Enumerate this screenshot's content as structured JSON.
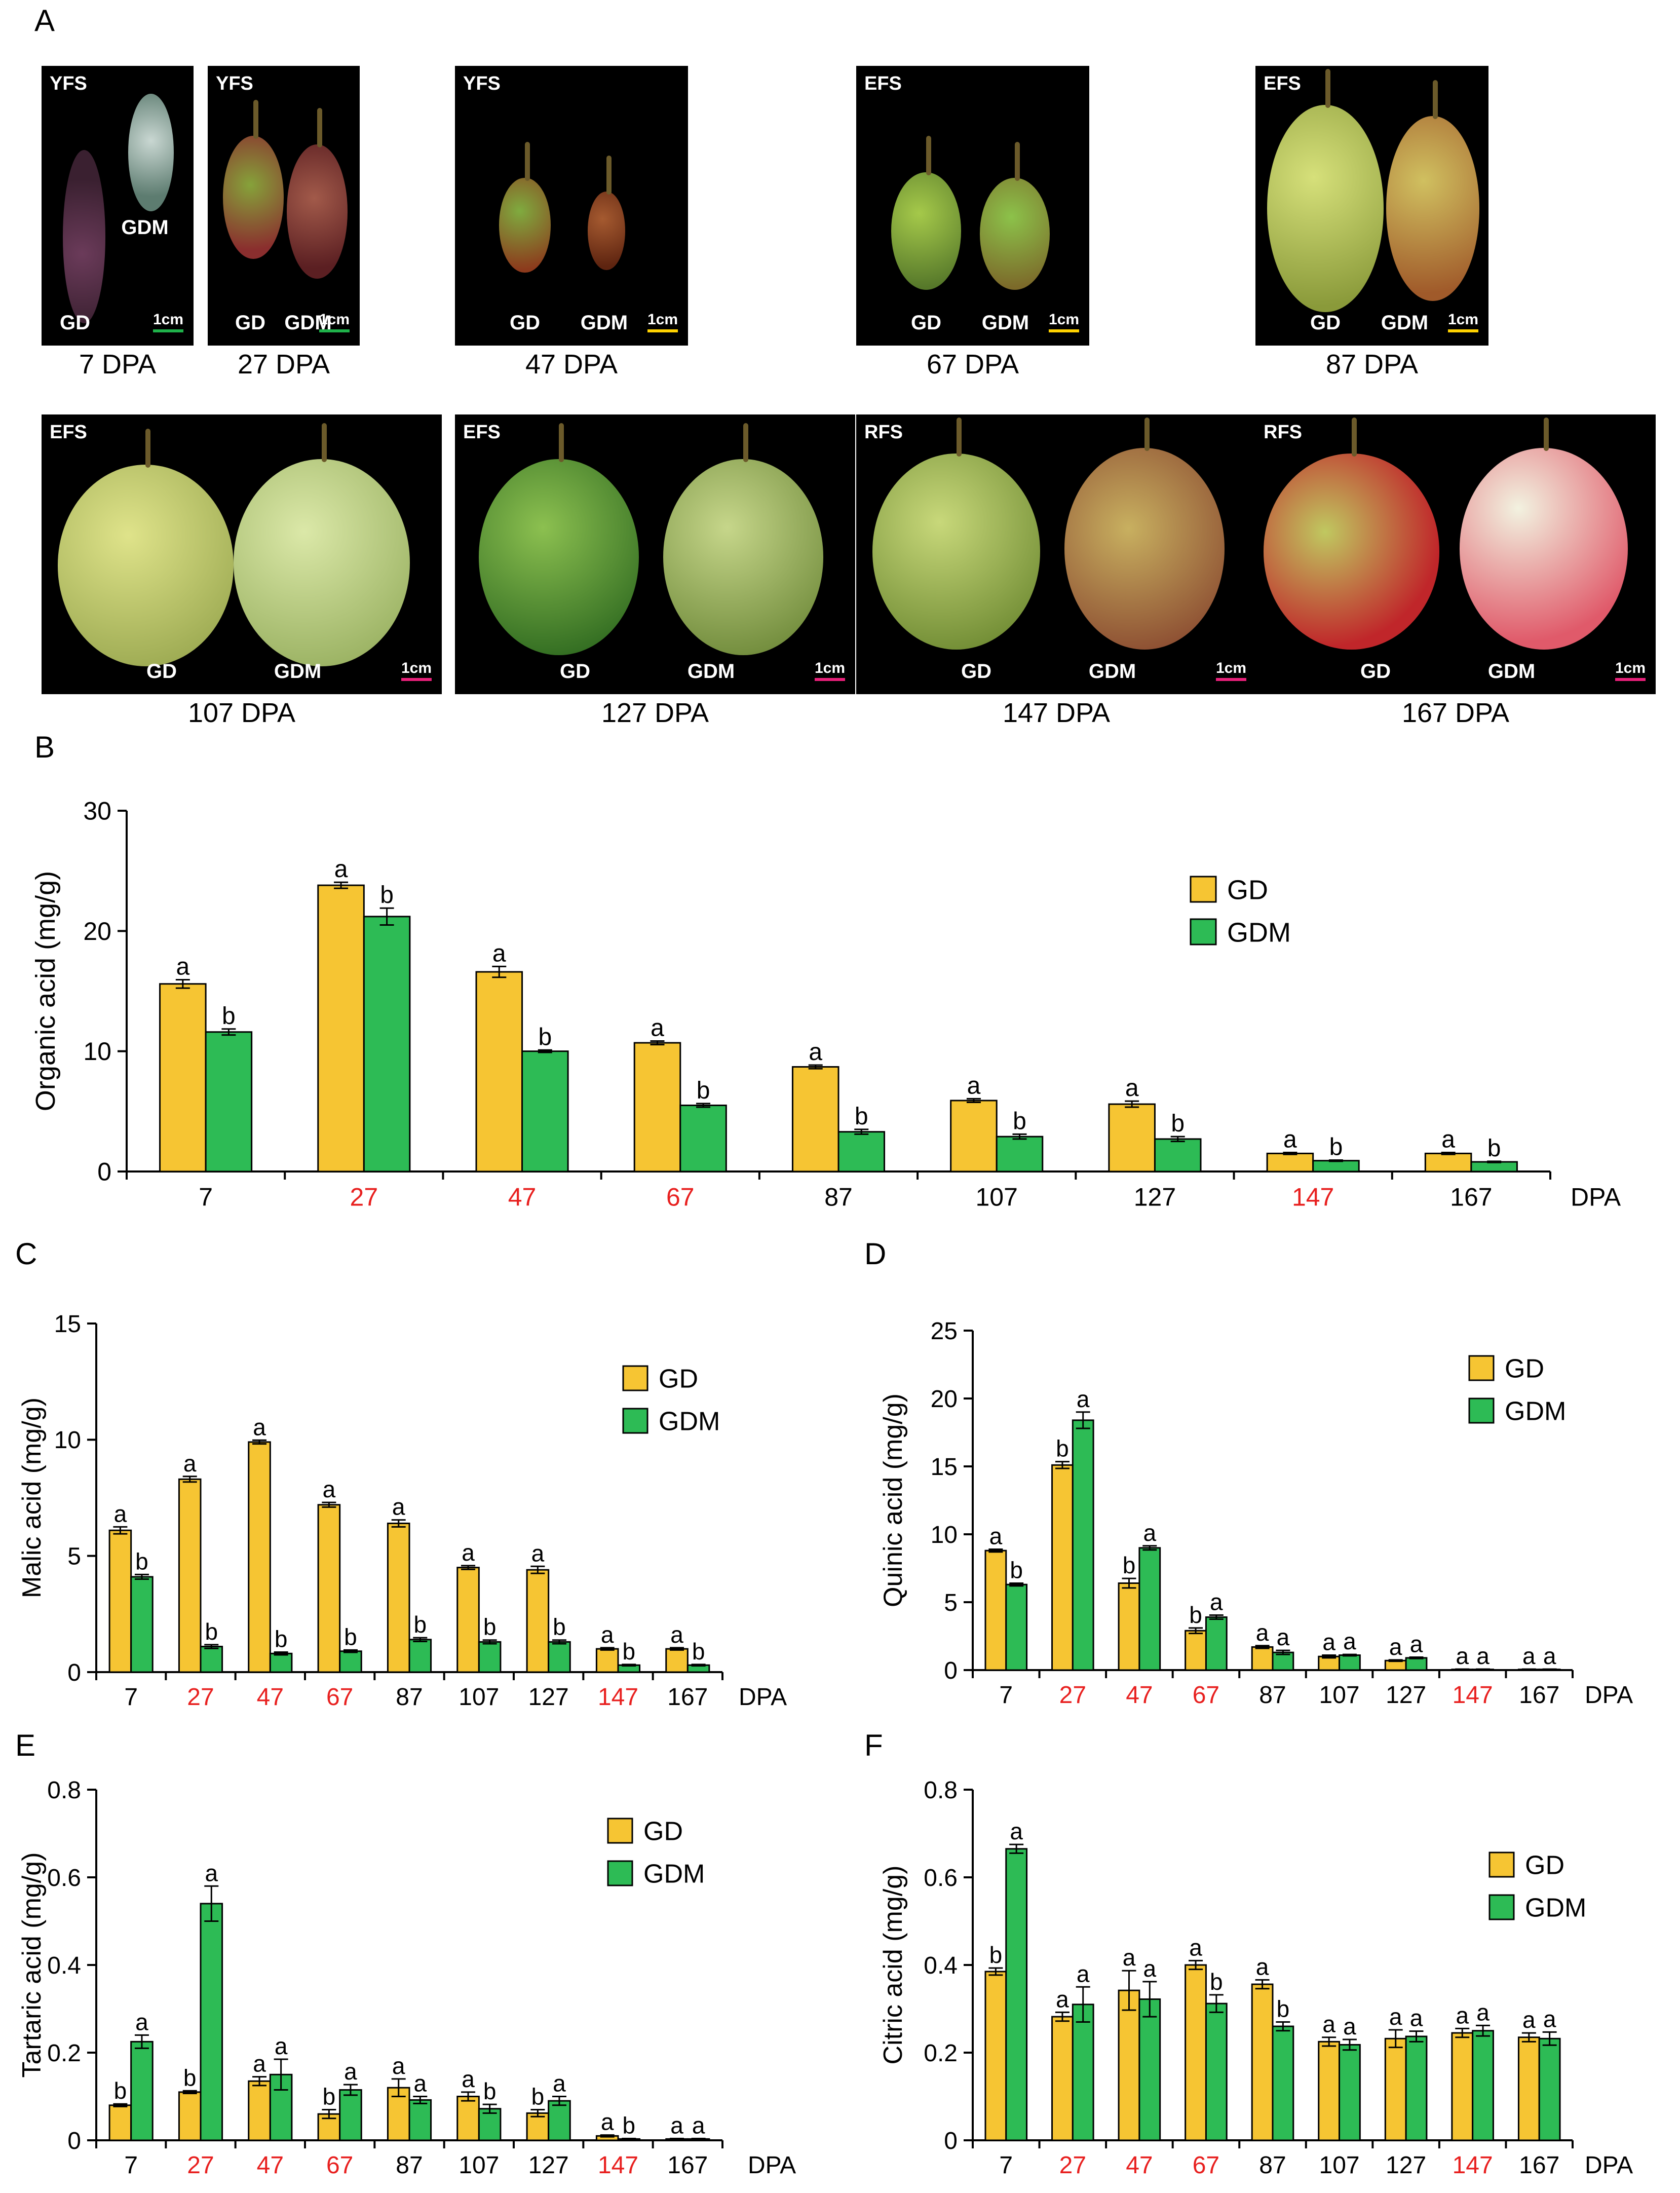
{
  "figure": {
    "panel_letters": [
      "A",
      "B",
      "C",
      "D",
      "E",
      "F"
    ],
    "legend": [
      "GD",
      "GDM"
    ],
    "series_colors": {
      "GD": "#f6c533",
      "GDM": "#2dbb55"
    },
    "highlight_color": "#e8201f",
    "dpa_unit": "DPA"
  },
  "photos": [
    {
      "stage": "YFS",
      "left_label": "GD",
      "right_label": "GDM",
      "scale": "1cm",
      "scale_color": "#1fb14a",
      "caption": "7 DPA"
    },
    {
      "stage": "YFS",
      "left_label": "GD",
      "right_label": "GDM",
      "scale": "1cm",
      "scale_color": "#1fb14a",
      "caption": "27 DPA"
    },
    {
      "stage": "YFS",
      "left_label": "GD",
      "right_label": "GDM",
      "scale": "1cm",
      "scale_color": "#ffd200",
      "caption": "47 DPA"
    },
    {
      "stage": "EFS",
      "left_label": "GD",
      "right_label": "GDM",
      "scale": "1cm",
      "scale_color": "#ffd200",
      "caption": "67 DPA"
    },
    {
      "stage": "EFS",
      "left_label": "GD",
      "right_label": "GDM",
      "scale": "1cm",
      "scale_color": "#ffd200",
      "caption": "87 DPA"
    },
    {
      "stage": "EFS",
      "left_label": "GD",
      "right_label": "GDM",
      "scale": "1cm",
      "scale_color": "#e8207a",
      "caption": "107 DPA"
    },
    {
      "stage": "EFS",
      "left_label": "GD",
      "right_label": "GDM",
      "scale": "1cm",
      "scale_color": "#e8207a",
      "caption": "127 DPA"
    },
    {
      "stage": "RFS",
      "left_label": "GD",
      "right_label": "GDM",
      "scale": "1cm",
      "scale_color": "#e8207a",
      "caption": "147 DPA"
    },
    {
      "stage": "RFS",
      "left_label": "GD",
      "right_label": "GDM",
      "scale": "1cm",
      "scale_color": "#e8207a",
      "caption": "167 DPA"
    }
  ],
  "chart_data": [
    {
      "id": "B",
      "type": "bar",
      "ylabel": "Organic acid (mg/g)",
      "xlabel": "DPA",
      "ylim": [
        0,
        30
      ],
      "yticks": [
        0,
        10,
        20,
        30
      ],
      "categories": [
        "7",
        "27",
        "47",
        "67",
        "87",
        "107",
        "127",
        "147",
        "167"
      ],
      "highlight": [
        "27",
        "47",
        "67",
        "147"
      ],
      "series": [
        {
          "name": "GD",
          "values": [
            15.6,
            23.8,
            16.6,
            10.7,
            8.7,
            5.9,
            5.6,
            1.5,
            1.5
          ],
          "errors": [
            0.35,
            0.25,
            0.45,
            0.15,
            0.15,
            0.15,
            0.25,
            0.08,
            0.08
          ],
          "letters": [
            "a",
            "a",
            "a",
            "a",
            "a",
            "a",
            "a",
            "a",
            "a"
          ]
        },
        {
          "name": "GDM",
          "values": [
            11.6,
            21.2,
            10.0,
            5.5,
            3.3,
            2.9,
            2.7,
            0.9,
            0.8
          ],
          "errors": [
            0.25,
            0.7,
            0.1,
            0.15,
            0.2,
            0.2,
            0.2,
            0.05,
            0.05
          ],
          "letters": [
            "b",
            "b",
            "b",
            "b",
            "b",
            "b",
            "b",
            "b",
            "b"
          ]
        }
      ]
    },
    {
      "id": "C",
      "type": "bar",
      "ylabel": "Malic acid (mg/g)",
      "xlabel": "DPA",
      "ylim": [
        0,
        15
      ],
      "yticks": [
        0,
        5,
        10,
        15
      ],
      "categories": [
        "7",
        "27",
        "47",
        "67",
        "87",
        "107",
        "127",
        "147",
        "167"
      ],
      "highlight": [
        "27",
        "47",
        "67",
        "147"
      ],
      "series": [
        {
          "name": "GD",
          "values": [
            6.1,
            8.3,
            9.9,
            7.2,
            6.4,
            4.5,
            4.4,
            1.0,
            1.0
          ],
          "errors": [
            0.15,
            0.12,
            0.08,
            0.1,
            0.15,
            0.08,
            0.15,
            0.05,
            0.05
          ],
          "letters": [
            "a",
            "a",
            "a",
            "a",
            "a",
            "a",
            "a",
            "a",
            "a"
          ]
        },
        {
          "name": "GDM",
          "values": [
            4.1,
            1.1,
            0.8,
            0.9,
            1.4,
            1.3,
            1.3,
            0.3,
            0.3
          ],
          "errors": [
            0.1,
            0.08,
            0.06,
            0.05,
            0.08,
            0.08,
            0.08,
            0.03,
            0.03
          ],
          "letters": [
            "b",
            "b",
            "b",
            "b",
            "b",
            "b",
            "b",
            "b",
            "b"
          ]
        }
      ]
    },
    {
      "id": "D",
      "type": "bar",
      "ylabel": "Quinic acid (mg/g)",
      "xlabel": "DPA",
      "ylim": [
        0,
        25
      ],
      "yticks": [
        0,
        5,
        10,
        15,
        20,
        25
      ],
      "categories": [
        "7",
        "27",
        "47",
        "67",
        "87",
        "107",
        "127",
        "147",
        "167"
      ],
      "highlight": [
        "27",
        "47",
        "67",
        "147"
      ],
      "series": [
        {
          "name": "GD",
          "values": [
            8.8,
            15.1,
            6.4,
            2.9,
            1.7,
            1.0,
            0.7,
            0.05,
            0.05
          ],
          "errors": [
            0.1,
            0.25,
            0.35,
            0.2,
            0.1,
            0.1,
            0.05,
            0.02,
            0.02
          ],
          "letters": [
            "a",
            "b",
            "b",
            "b",
            "a",
            "a",
            "a",
            "a",
            "a"
          ]
        },
        {
          "name": "GDM",
          "values": [
            6.3,
            18.4,
            9.0,
            3.9,
            1.3,
            1.1,
            0.9,
            0.05,
            0.05
          ],
          "errors": [
            0.1,
            0.6,
            0.15,
            0.15,
            0.15,
            0.05,
            0.05,
            0.02,
            0.02
          ],
          "letters": [
            "b",
            "a",
            "a",
            "a",
            "a",
            "a",
            "a",
            "a",
            "a"
          ]
        }
      ]
    },
    {
      "id": "E",
      "type": "bar",
      "ylabel": "Tartaric acid (mg/g)",
      "xlabel": "DPA",
      "ylim": [
        0,
        0.8
      ],
      "yticks": [
        0,
        0.2,
        0.4,
        0.6,
        0.8
      ],
      "categories": [
        "7",
        "27",
        "47",
        "67",
        "87",
        "107",
        "127",
        "147",
        "167"
      ],
      "highlight": [
        "27",
        "47",
        "67",
        "147"
      ],
      "series": [
        {
          "name": "GD",
          "values": [
            0.08,
            0.11,
            0.135,
            0.06,
            0.12,
            0.1,
            0.062,
            0.01,
            0.003
          ],
          "errors": [
            0.003,
            0.003,
            0.01,
            0.01,
            0.02,
            0.01,
            0.008,
            0.002,
            0.001
          ],
          "letters": [
            "b",
            "b",
            "a",
            "b",
            "a",
            "a",
            "b",
            "a",
            "a"
          ]
        },
        {
          "name": "GDM",
          "values": [
            0.225,
            0.54,
            0.15,
            0.115,
            0.092,
            0.072,
            0.09,
            0.003,
            0.003
          ],
          "errors": [
            0.015,
            0.04,
            0.035,
            0.012,
            0.008,
            0.01,
            0.01,
            0.001,
            0.001
          ],
          "letters": [
            "a",
            "a",
            "a",
            "a",
            "a",
            "b",
            "a",
            "b",
            "a"
          ]
        }
      ]
    },
    {
      "id": "F",
      "type": "bar",
      "ylabel": "Citric acid (mg/g)",
      "xlabel": "DPA",
      "ylim": [
        0,
        0.8
      ],
      "yticks": [
        0,
        0.2,
        0.4,
        0.6,
        0.8
      ],
      "categories": [
        "7",
        "27",
        "47",
        "67",
        "87",
        "107",
        "127",
        "147",
        "167"
      ],
      "highlight": [
        "27",
        "47",
        "67",
        "147"
      ],
      "series": [
        {
          "name": "GD",
          "values": [
            0.385,
            0.282,
            0.342,
            0.4,
            0.356,
            0.225,
            0.232,
            0.245,
            0.235
          ],
          "errors": [
            0.008,
            0.01,
            0.045,
            0.01,
            0.01,
            0.01,
            0.02,
            0.01,
            0.01
          ],
          "letters": [
            "b",
            "a",
            "a",
            "a",
            "a",
            "a",
            "a",
            "a",
            "a"
          ]
        },
        {
          "name": "GDM",
          "values": [
            0.665,
            0.31,
            0.322,
            0.312,
            0.26,
            0.218,
            0.237,
            0.25,
            0.232
          ],
          "errors": [
            0.01,
            0.04,
            0.04,
            0.02,
            0.01,
            0.012,
            0.012,
            0.012,
            0.015
          ],
          "letters": [
            "a",
            "a",
            "a",
            "b",
            "b",
            "a",
            "a",
            "a",
            "a"
          ]
        }
      ]
    }
  ]
}
